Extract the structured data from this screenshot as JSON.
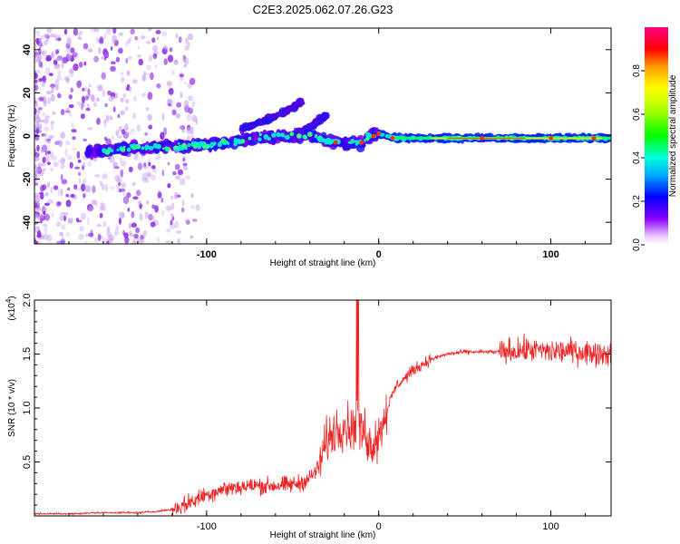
{
  "title": "C2E3.2025.062.07.26.G23",
  "chart_data": [
    {
      "type": "heatmap",
      "title": "C2E3.2025.062.07.26.G23",
      "xlabel": "Height of straight line (km)",
      "ylabel": "Frequency (Hz)",
      "xlim": [
        -200,
        135
      ],
      "ylim": [
        -50,
        50
      ],
      "xticks": [
        -100,
        0,
        100
      ],
      "xtick_labels": [
        "-100",
        "0",
        "100"
      ],
      "yticks": [
        -40,
        -20,
        0,
        20,
        40
      ],
      "ytick_labels": [
        "-40",
        "-20",
        "0",
        "20",
        "40"
      ],
      "colorbar": {
        "label": "Normalized spectral amplitude",
        "range": [
          0,
          1
        ],
        "ticks": [
          0.0,
          0.2,
          0.4,
          0.6,
          0.8
        ],
        "tick_labels": [
          "0.0",
          "0.2",
          "0.4",
          "0.6",
          "0.8"
        ]
      },
      "main_trace": {
        "x": [
          -200,
          -160,
          -140,
          -120,
          -100,
          -80,
          -60,
          -40,
          -30,
          -20,
          -10,
          -5,
          0,
          10,
          50,
          100,
          135
        ],
        "frequency_hz": [
          -8,
          -7,
          -5,
          -5,
          -4,
          -2,
          0,
          0,
          -2,
          -3,
          -3,
          0,
          1,
          -1,
          -1,
          -1,
          -1
        ]
      },
      "upper_branch": {
        "x": [
          -80,
          -70,
          -60,
          -50,
          -45
        ],
        "frequency_hz": [
          3,
          6,
          9,
          13,
          16
        ]
      },
      "second_branch": {
        "x": [
          -50,
          -40,
          -35,
          -30
        ],
        "frequency_hz": [
          0,
          4,
          7,
          10
        ]
      }
    },
    {
      "type": "line",
      "xlabel": "Height of straight line (km)",
      "ylabel": "SNR (10 * v/v)",
      "y_multiplier": "(x10",
      "y_multiplier_exp": "4",
      "xlim": [
        -200,
        135
      ],
      "ylim": [
        0,
        2.0
      ],
      "xticks": [
        -100,
        0,
        100
      ],
      "xtick_labels": [
        "-100",
        "0",
        "100"
      ],
      "yticks": [
        0.5,
        1.0,
        1.5,
        2.0
      ],
      "ytick_labels": [
        "0.5",
        "1.0",
        "1.5",
        "2.0"
      ],
      "series": [
        {
          "name": "SNR",
          "color": "#ee2222",
          "x": [
            -200,
            -180,
            -160,
            -140,
            -130,
            -120,
            -110,
            -100,
            -90,
            -80,
            -70,
            -60,
            -50,
            -45,
            -40,
            -35,
            -30,
            -25,
            -20,
            -15,
            -12,
            -10,
            -8,
            -5,
            0,
            5,
            10,
            20,
            30,
            40,
            50,
            60,
            70,
            80,
            90,
            100,
            110,
            120,
            135
          ],
          "values": [
            0.02,
            0.02,
            0.03,
            0.03,
            0.04,
            0.06,
            0.12,
            0.2,
            0.25,
            0.27,
            0.28,
            0.28,
            0.29,
            0.31,
            0.35,
            0.45,
            0.7,
            0.8,
            0.85,
            0.8,
            0.95,
            0.75,
            0.8,
            0.65,
            0.75,
            1.0,
            1.2,
            1.35,
            1.45,
            1.5,
            1.52,
            1.52,
            1.52,
            1.53,
            1.54,
            1.52,
            1.53,
            1.52,
            1.5
          ]
        }
      ]
    }
  ]
}
